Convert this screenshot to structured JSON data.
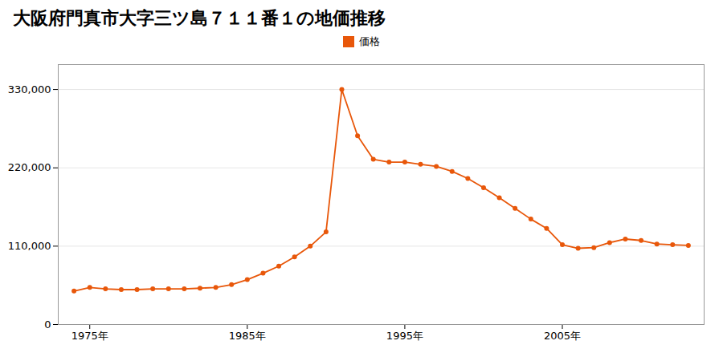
{
  "chart_data": {
    "type": "line",
    "title": "大阪府門真市大字三ツ島７１１番１の地価推移",
    "x": [
      1974,
      1975,
      1976,
      1977,
      1978,
      1979,
      1980,
      1981,
      1982,
      1983,
      1984,
      1985,
      1986,
      1987,
      1988,
      1989,
      1990,
      1991,
      1992,
      1993,
      1994,
      1995,
      1996,
      1997,
      1998,
      1999,
      2000,
      2001,
      2002,
      2003,
      2004,
      2005,
      2006,
      2007,
      2008,
      2009,
      2010,
      2011,
      2012,
      2013
    ],
    "series": [
      {
        "name": "価格",
        "color": "#e8570a",
        "marker": "circle",
        "values": [
          47000,
          52000,
          50000,
          49000,
          49000,
          50000,
          50000,
          50000,
          51000,
          52000,
          56000,
          63000,
          72000,
          82000,
          95000,
          110000,
          130000,
          330000,
          265000,
          232000,
          228000,
          228000,
          225000,
          222000,
          215000,
          205000,
          192000,
          178000,
          163000,
          148000,
          135000,
          112000,
          107000,
          108000,
          115000,
          120000,
          118000,
          113000,
          112000,
          111000
        ]
      }
    ],
    "xlim": [
      1973,
      2014
    ],
    "xticks": [
      {
        "value": 1975,
        "label": "1975年"
      },
      {
        "value": 1985,
        "label": "1985年"
      },
      {
        "value": 1995,
        "label": "1995年"
      },
      {
        "value": 2005,
        "label": "2005年"
      }
    ],
    "ylim": [
      0,
      365000
    ],
    "yticks": [
      0,
      {
        "value": 110000,
        "label": "110,000"
      },
      {
        "value": 220000,
        "label": "220,000"
      },
      {
        "value": 330000,
        "label": "330,000"
      }
    ],
    "grid": "y",
    "legend": "top"
  }
}
